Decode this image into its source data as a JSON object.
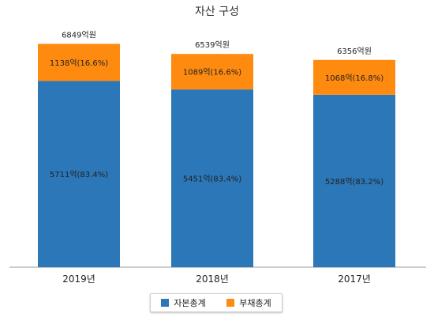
{
  "chart_data": {
    "type": "bar",
    "stacked": true,
    "title": "자산 구성",
    "categories": [
      "2019년",
      "2018년",
      "2017년"
    ],
    "totals": [
      6849,
      6539,
      6356
    ],
    "total_labels": [
      "6849억원",
      "6539억원",
      "6356억원"
    ],
    "ylim": [
      0,
      8000
    ],
    "grid": false,
    "legend_position": "bottom",
    "series": [
      {
        "name": "자본총계",
        "color": "#2b77b7",
        "values": [
          5711,
          5451,
          5288
        ],
        "labels": [
          "5711억(83.4%)",
          "5451억(83.4%)",
          "5288억(83.2%)"
        ]
      },
      {
        "name": "부채총계",
        "color": "#ff8a10",
        "values": [
          1138,
          1089,
          1068
        ],
        "labels": [
          "1138억(16.6%)",
          "1089억(16.6%)",
          "1068억(16.8%)"
        ]
      }
    ]
  }
}
